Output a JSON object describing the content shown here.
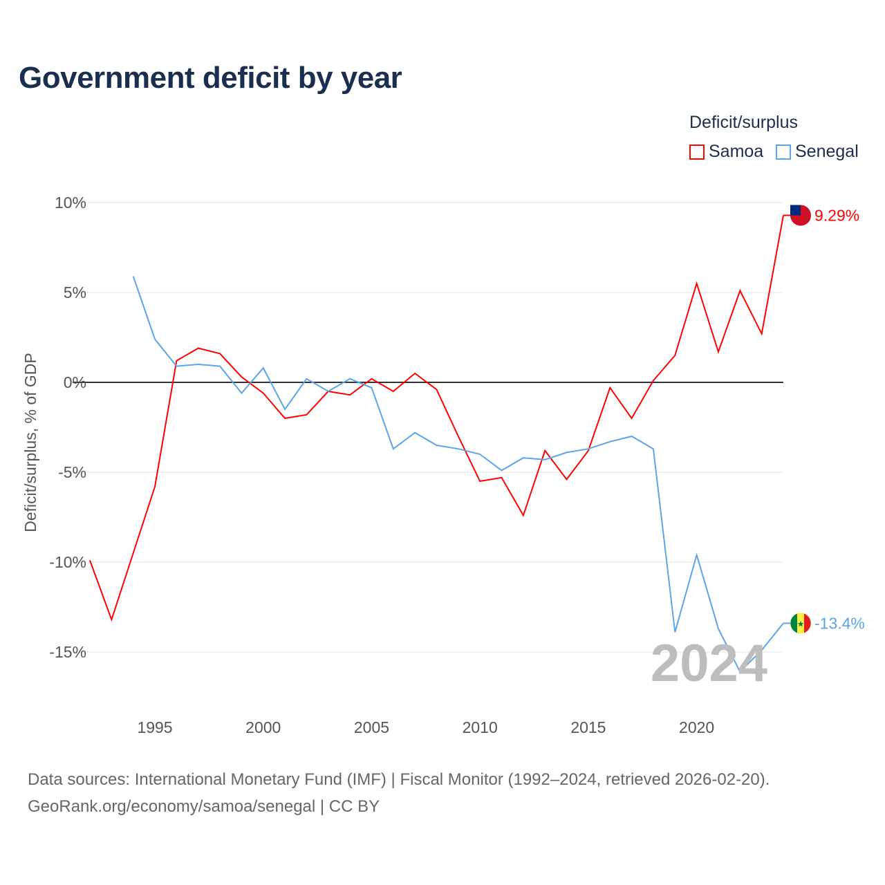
{
  "title": "Government deficit by year",
  "legend": {
    "title": "Deficit/surplus",
    "items": [
      "Samoa",
      "Senegal"
    ]
  },
  "year_watermark": "2024",
  "source_lines": [
    "Data sources: International Monetary Fund (IMF) | Fiscal Monitor (1992–2024, retrieved 2026-02-20).",
    "GeoRank.org/economy/samoa/senegal | CC BY"
  ],
  "chart_data": {
    "type": "line",
    "title": "Government deficit by year",
    "xlabel": "",
    "ylabel": "Deficit/surplus, % of GDP",
    "xlim": [
      1992,
      2024
    ],
    "ylim": [
      -17,
      10
    ],
    "x_ticks": [
      1995,
      2000,
      2005,
      2010,
      2015,
      2020
    ],
    "y_ticks": [
      {
        "v": 10,
        "label": "10%"
      },
      {
        "v": 5,
        "label": "5%"
      },
      {
        "v": 0,
        "label": "0%"
      },
      {
        "v": -5,
        "label": "-5%"
      },
      {
        "v": -10,
        "label": "-10%"
      },
      {
        "v": -15,
        "label": "-15%"
      }
    ],
    "series": [
      {
        "name": "Samoa",
        "color": "#ff0000",
        "end_label": "9.29%",
        "x_start": 1992,
        "values": [
          -9.9,
          -13.2,
          -9.5,
          -5.8,
          1.2,
          1.9,
          1.6,
          0.3,
          -0.6,
          -2.0,
          -1.8,
          -0.5,
          -0.7,
          0.2,
          -0.5,
          0.5,
          -0.4,
          -3.0,
          -5.5,
          -5.3,
          -7.4,
          -3.8,
          -5.4,
          -3.8,
          -0.3,
          -2.0,
          0.1,
          1.5,
          5.5,
          1.7,
          5.1,
          2.7,
          9.29
        ]
      },
      {
        "name": "Senegal",
        "color": "#5ba4e8",
        "end_label": "-13.4%",
        "x_start": 1994,
        "values": [
          5.9,
          2.4,
          0.9,
          1.0,
          0.9,
          -0.6,
          0.8,
          -1.5,
          0.2,
          -0.5,
          0.2,
          -0.3,
          -3.7,
          -2.8,
          -3.5,
          -3.7,
          -4.0,
          -4.9,
          -4.2,
          -4.3,
          -3.9,
          -3.7,
          -3.3,
          -3.0,
          -3.7,
          -13.9,
          -9.6,
          -13.7,
          -16.1,
          -14.9,
          -13.4
        ]
      }
    ]
  }
}
